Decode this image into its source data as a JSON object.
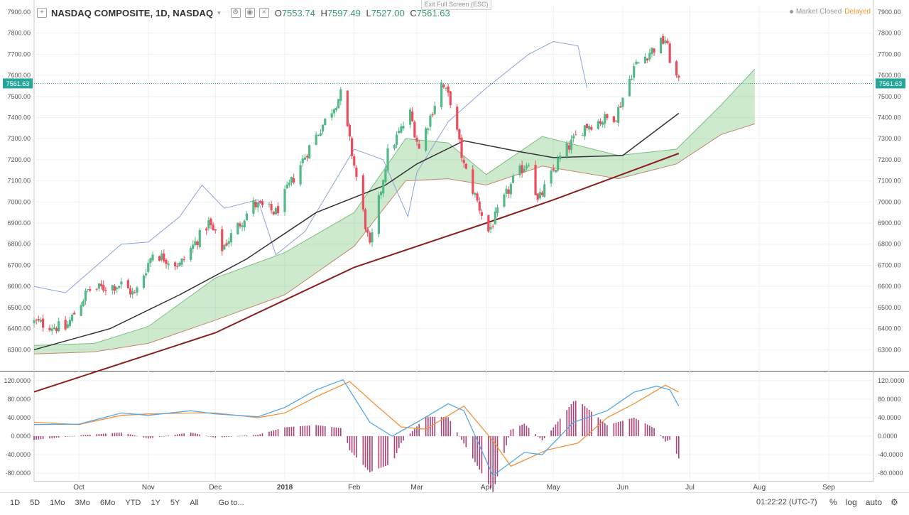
{
  "header": {
    "symbol": "NASDAQ COMPOSITE, 1D, NASDAQ",
    "open_label": "O",
    "open": "7553.74",
    "high_label": "H",
    "high": "7597.49",
    "low_label": "L",
    "low": "7527.00",
    "close_label": "C",
    "close": "7561.63",
    "exit_fullscreen": "Exit Full Screen (ESC)",
    "market_status": "Market Closed",
    "delayed": "Delayed"
  },
  "bottom_bar": {
    "timeframes": [
      "1D",
      "5D",
      "1Mo",
      "3Mo",
      "6Mo",
      "YTD",
      "1Y",
      "5Y",
      "All"
    ],
    "goto": "Go to...",
    "clock": "01:22:22 (UTC-7)",
    "percent": "%",
    "log": "log",
    "auto": "auto"
  },
  "chart_data": [
    {
      "type": "candlestick",
      "title": "NASDAQ COMPOSITE, 1D, NASDAQ",
      "ylim": [
        6200,
        7930
      ],
      "yticks": [
        6300,
        6400,
        6500,
        6600,
        6700,
        6800,
        6900,
        7000,
        7100,
        7200,
        7300,
        7400,
        7500,
        7600,
        7700,
        7800,
        7900
      ],
      "ytick_labels": [
        "6300.00",
        "6400.00",
        "6500.00",
        "6600.00",
        "6700.00",
        "6800.00",
        "6900.00",
        "7000.00",
        "7100.00",
        "7200.00",
        "7300.00",
        "7400.00",
        "7500.00",
        "7600.00",
        "7700.00",
        "7800.00",
        "7900.00"
      ],
      "xlim": [
        "2017-09-11",
        "2018-09-21"
      ],
      "x_ticks": [
        {
          "date": "2017-10-01",
          "label": "Oct"
        },
        {
          "date": "2017-11-01",
          "label": "Nov"
        },
        {
          "date": "2017-12-01",
          "label": "Dec"
        },
        {
          "date": "2018-01-01",
          "label": "2018"
        },
        {
          "date": "2018-02-01",
          "label": "Feb"
        },
        {
          "date": "2018-03-01",
          "label": "Mar"
        },
        {
          "date": "2018-04-01",
          "label": "Apr"
        },
        {
          "date": "2018-05-01",
          "label": "May"
        },
        {
          "date": "2018-06-01",
          "label": "Jun"
        },
        {
          "date": "2018-07-01",
          "label": "Jul"
        },
        {
          "date": "2018-08-01",
          "label": "Aug"
        },
        {
          "date": "2018-09-01",
          "label": "Sep"
        }
      ],
      "last_price": 7561.63,
      "last_price_label": "7561.63",
      "up_color": "#53b987",
      "down_color": "#eb4d5c",
      "anchors": [
        [
          "2017-09-11",
          6430
        ],
        [
          "2017-09-25",
          6400
        ],
        [
          "2017-10-05",
          6580
        ],
        [
          "2017-10-20",
          6610
        ],
        [
          "2017-10-26",
          6560
        ],
        [
          "2017-11-03",
          6760
        ],
        [
          "2017-11-15",
          6700
        ],
        [
          "2017-11-28",
          6900
        ],
        [
          "2017-12-04",
          6780
        ],
        [
          "2017-12-18",
          6990
        ],
        [
          "2017-12-28",
          6950
        ],
        [
          "2018-01-12",
          7260
        ],
        [
          "2018-01-26",
          7510
        ],
        [
          "2018-02-08",
          6780
        ],
        [
          "2018-02-16",
          7230
        ],
        [
          "2018-02-26",
          7420
        ],
        [
          "2018-03-02",
          7250
        ],
        [
          "2018-03-12",
          7560
        ],
        [
          "2018-03-16",
          7480
        ],
        [
          "2018-03-22",
          7170
        ],
        [
          "2018-04-02",
          6860
        ],
        [
          "2018-04-13",
          7100
        ],
        [
          "2018-04-20",
          7200
        ],
        [
          "2018-04-24",
          7000
        ],
        [
          "2018-05-04",
          7210
        ],
        [
          "2018-05-15",
          7360
        ],
        [
          "2018-05-29",
          7410
        ],
        [
          "2018-06-06",
          7640
        ],
        [
          "2018-06-14",
          7720
        ],
        [
          "2018-06-20",
          7770
        ],
        [
          "2018-06-22",
          7680
        ],
        [
          "2018-06-26",
          7560
        ]
      ],
      "ichimoku_cloud_top": [
        [
          "2017-09-11",
          6320
        ],
        [
          "2017-10-08",
          6330
        ],
        [
          "2017-11-01",
          6410
        ],
        [
          "2017-12-01",
          6640
        ],
        [
          "2018-01-01",
          6760
        ],
        [
          "2018-02-01",
          6950
        ],
        [
          "2018-02-24",
          7300
        ],
        [
          "2018-03-15",
          7280
        ],
        [
          "2018-04-01",
          7130
        ],
        [
          "2018-04-26",
          7310
        ],
        [
          "2018-05-30",
          7220
        ],
        [
          "2018-06-25",
          7250
        ],
        [
          "2018-07-15",
          7460
        ],
        [
          "2018-07-30",
          7630
        ]
      ],
      "ichimoku_cloud_bottom": [
        [
          "2017-09-11",
          6280
        ],
        [
          "2017-10-08",
          6290
        ],
        [
          "2017-11-01",
          6330
        ],
        [
          "2017-12-01",
          6440
        ],
        [
          "2018-01-01",
          6560
        ],
        [
          "2018-02-01",
          6790
        ],
        [
          "2018-02-24",
          7100
        ],
        [
          "2018-03-15",
          7110
        ],
        [
          "2018-04-01",
          7080
        ],
        [
          "2018-04-26",
          7170
        ],
        [
          "2018-05-30",
          7110
        ],
        [
          "2018-06-25",
          7180
        ],
        [
          "2018-07-15",
          7320
        ],
        [
          "2018-07-30",
          7370
        ]
      ],
      "sma_50": [
        [
          "2017-09-11",
          6300
        ],
        [
          "2017-10-15",
          6400
        ],
        [
          "2017-11-15",
          6560
        ],
        [
          "2017-12-15",
          6730
        ],
        [
          "2018-01-15",
          6950
        ],
        [
          "2018-02-15",
          7080
        ],
        [
          "2018-03-01",
          7180
        ],
        [
          "2018-03-22",
          7290
        ],
        [
          "2018-04-15",
          7240
        ],
        [
          "2018-05-01",
          7210
        ],
        [
          "2018-06-01",
          7220
        ],
        [
          "2018-06-26",
          7420
        ]
      ],
      "sma_200": [
        [
          "2017-09-11",
          6100
        ],
        [
          "2017-12-01",
          6380
        ],
        [
          "2018-02-01",
          6690
        ],
        [
          "2018-04-01",
          6900
        ],
        [
          "2018-05-01",
          7010
        ],
        [
          "2018-06-26",
          7230
        ]
      ],
      "lagging_span": [
        [
          "2017-09-11",
          6600
        ],
        [
          "2017-09-25",
          6570
        ],
        [
          "2017-10-20",
          6800
        ],
        [
          "2017-11-01",
          6810
        ],
        [
          "2017-11-15",
          6930
        ],
        [
          "2017-11-25",
          7080
        ],
        [
          "2017-12-05",
          6970
        ],
        [
          "2017-12-20",
          7010
        ],
        [
          "2017-12-28",
          6750
        ],
        [
          "2018-01-10",
          6860
        ],
        [
          "2018-02-01",
          7250
        ],
        [
          "2018-02-14",
          7200
        ],
        [
          "2018-02-25",
          6930
        ],
        [
          "2018-03-01",
          7140
        ],
        [
          "2018-03-15",
          7380
        ],
        [
          "2018-04-01",
          7540
        ],
        [
          "2018-04-20",
          7700
        ],
        [
          "2018-05-01",
          7760
        ],
        [
          "2018-05-12",
          7740
        ],
        [
          "2018-05-16",
          7540
        ]
      ]
    },
    {
      "type": "line",
      "indicator": "MACD",
      "ylim": [
        -95,
        135
      ],
      "yticks": [
        -80,
        -40,
        0,
        40,
        80,
        120
      ],
      "ytick_labels": [
        "-80.0000",
        "-40.0000",
        "0.0000",
        "40.0000",
        "80.0000",
        "120.0000"
      ],
      "macd_color": "#56a8e8",
      "signal_color": "#f0923a",
      "hist_color": "#a0205e",
      "macd": [
        [
          "2017-09-11",
          25
        ],
        [
          "2017-10-01",
          26
        ],
        [
          "2017-10-20",
          50
        ],
        [
          "2017-11-01",
          45
        ],
        [
          "2017-11-20",
          55
        ],
        [
          "2017-12-01",
          48
        ],
        [
          "2017-12-20",
          42
        ],
        [
          "2018-01-01",
          62
        ],
        [
          "2018-01-15",
          100
        ],
        [
          "2018-01-27",
          122
        ],
        [
          "2018-02-08",
          30
        ],
        [
          "2018-02-18",
          0
        ],
        [
          "2018-03-01",
          30
        ],
        [
          "2018-03-15",
          70
        ],
        [
          "2018-03-22",
          55
        ],
        [
          "2018-04-04",
          -85
        ],
        [
          "2018-04-18",
          -35
        ],
        [
          "2018-04-26",
          -40
        ],
        [
          "2018-05-10",
          30
        ],
        [
          "2018-05-25",
          55
        ],
        [
          "2018-06-06",
          95
        ],
        [
          "2018-06-16",
          108
        ],
        [
          "2018-06-22",
          100
        ],
        [
          "2018-06-26",
          65
        ]
      ],
      "signal": [
        [
          "2017-09-11",
          30
        ],
        [
          "2017-10-01",
          25
        ],
        [
          "2017-10-20",
          45
        ],
        [
          "2017-11-01",
          48
        ],
        [
          "2017-11-20",
          50
        ],
        [
          "2017-12-01",
          50
        ],
        [
          "2017-12-20",
          40
        ],
        [
          "2018-01-01",
          50
        ],
        [
          "2018-01-15",
          85
        ],
        [
          "2018-01-30",
          118
        ],
        [
          "2018-02-10",
          70
        ],
        [
          "2018-02-22",
          20
        ],
        [
          "2018-03-05",
          15
        ],
        [
          "2018-03-22",
          65
        ],
        [
          "2018-04-04",
          -10
        ],
        [
          "2018-04-12",
          -65
        ],
        [
          "2018-04-28",
          -30
        ],
        [
          "2018-05-12",
          -15
        ],
        [
          "2018-05-25",
          40
        ],
        [
          "2018-06-06",
          70
        ],
        [
          "2018-06-20",
          110
        ],
        [
          "2018-06-26",
          95
        ]
      ]
    }
  ]
}
